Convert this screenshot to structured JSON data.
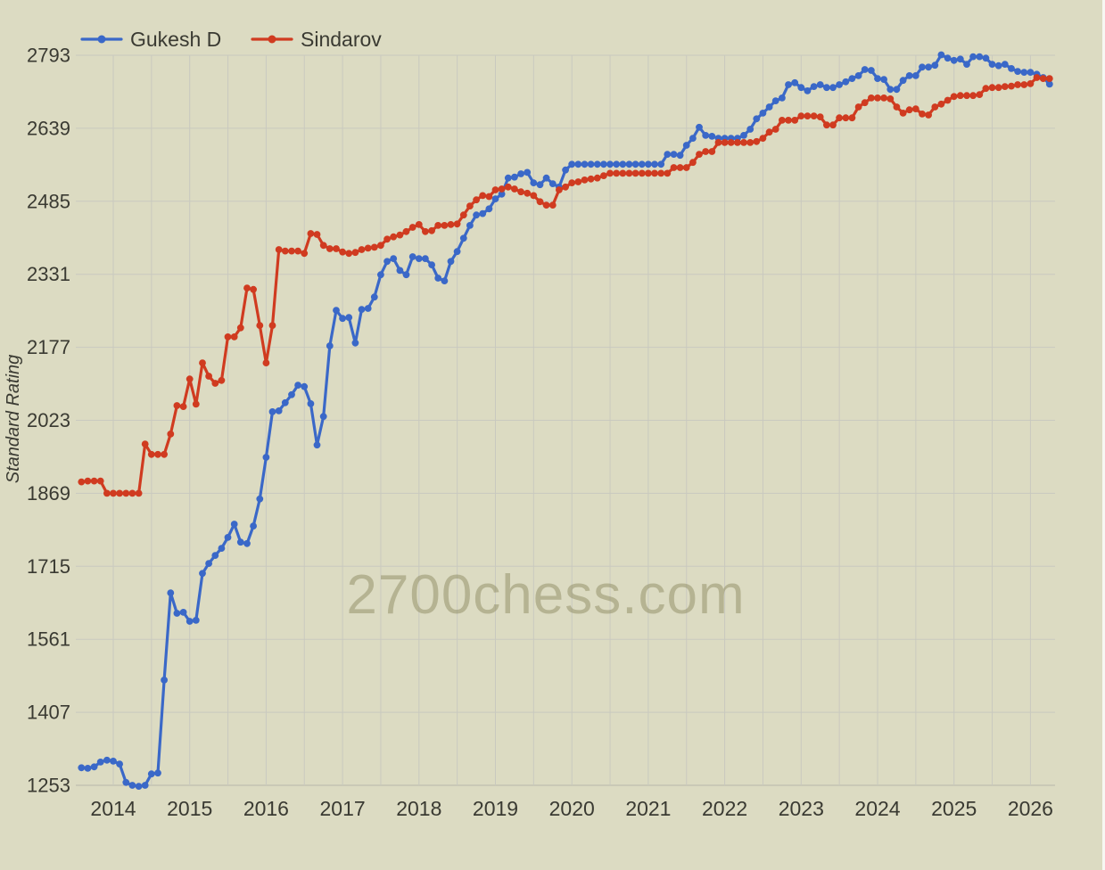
{
  "watermark": "2700chess.com",
  "colors": {
    "background": "#dcdbc2",
    "grid": "#c9c9bf",
    "axis_line": "#b7b7ab",
    "text": "#3a3a32",
    "watermark_color": "#8f8c63",
    "gukesh_blue": "#3a68c8",
    "sindarov_red": "#d03b20",
    "right_edge_strip": "#f7f7f2"
  },
  "legend": {
    "items": [
      {
        "label": "Gukesh D",
        "color": "#3a68c8"
      },
      {
        "label": "Sindarov",
        "color": "#d03b20"
      }
    ]
  },
  "y_axis": {
    "label": "Standard Rating",
    "ticks": [
      1253,
      1407,
      1561,
      1715,
      1869,
      2023,
      2177,
      2331,
      2485,
      2639,
      2793
    ]
  },
  "x_axis": {
    "tick_years": [
      2014,
      2015,
      2016,
      2017,
      2018,
      2019,
      2020,
      2021,
      2022,
      2023,
      2024,
      2025,
      2026
    ],
    "minor_grid_step_years": 0.5
  },
  "chart_data": {
    "type": "line",
    "title": "",
    "xlabel": "",
    "ylabel": "Standard Rating",
    "ylim": [
      1253,
      2793
    ],
    "xlim": [
      2013.54,
      2026.33
    ],
    "grid": true,
    "legend_position": "top-left",
    "x_start_year": 2013.5833,
    "x_step_years": 0.0833333,
    "marker": "circle",
    "series": [
      {
        "name": "Gukesh D",
        "color": "#3a68c8",
        "values": [
          1290,
          1289,
          1292,
          1302,
          1306,
          1304,
          1298,
          1259,
          1253,
          1251,
          1253,
          1277,
          1279,
          1475,
          1659,
          1616,
          1618,
          1599,
          1601,
          1700,
          1721,
          1738,
          1753,
          1776,
          1804,
          1766,
          1763,
          1800,
          1857,
          1945,
          2041,
          2043,
          2060,
          2077,
          2097,
          2094,
          2058,
          1971,
          2031,
          2180,
          2255,
          2238,
          2240,
          2186,
          2257,
          2259,
          2283,
          2330,
          2358,
          2364,
          2339,
          2330,
          2368,
          2364,
          2364,
          2351,
          2323,
          2317,
          2358,
          2379,
          2407,
          2434,
          2456,
          2459,
          2469,
          2490,
          2500,
          2534,
          2536,
          2543,
          2546,
          2524,
          2520,
          2534,
          2522,
          2515,
          2551,
          2563,
          2563,
          2563,
          2563,
          2563,
          2563,
          2563,
          2563,
          2563,
          2563,
          2563,
          2563,
          2563,
          2563,
          2563,
          2584,
          2584,
          2582,
          2603,
          2618,
          2641,
          2624,
          2622,
          2618,
          2618,
          2618,
          2618,
          2624,
          2637,
          2659,
          2671,
          2684,
          2697,
          2703,
          2731,
          2735,
          2725,
          2718,
          2727,
          2731,
          2725,
          2725,
          2731,
          2737,
          2744,
          2750,
          2763,
          2761,
          2744,
          2742,
          2721,
          2721,
          2740,
          2750,
          2750,
          2768,
          2768,
          2772,
          2794,
          2787,
          2782,
          2785,
          2774,
          2790,
          2790,
          2787,
          2774,
          2771,
          2774,
          2765,
          2759,
          2757,
          2757,
          2753,
          2746,
          2732
        ]
      },
      {
        "name": "Sindarov",
        "color": "#d03b20",
        "values": [
          1893,
          1895,
          1895,
          1895,
          1869,
          1869,
          1869,
          1869,
          1869,
          1869,
          1973,
          1951,
          1951,
          1951,
          1994,
          2054,
          2052,
          2110,
          2057,
          2144,
          2116,
          2101,
          2107,
          2199,
          2199,
          2218,
          2302,
          2299,
          2223,
          2144,
          2223,
          2383,
          2380,
          2380,
          2380,
          2375,
          2417,
          2415,
          2392,
          2385,
          2385,
          2378,
          2375,
          2377,
          2383,
          2386,
          2388,
          2392,
          2405,
          2410,
          2414,
          2421,
          2430,
          2436,
          2421,
          2423,
          2434,
          2434,
          2436,
          2437,
          2456,
          2475,
          2488,
          2497,
          2495,
          2509,
          2511,
          2515,
          2511,
          2505,
          2502,
          2497,
          2484,
          2477,
          2477,
          2509,
          2515,
          2524,
          2526,
          2530,
          2532,
          2534,
          2539,
          2544,
          2544,
          2544,
          2544,
          2544,
          2544,
          2544,
          2544,
          2544,
          2544,
          2556,
          2556,
          2556,
          2567,
          2584,
          2590,
          2590,
          2609,
          2609,
          2609,
          2609,
          2609,
          2609,
          2611,
          2618,
          2631,
          2637,
          2656,
          2656,
          2656,
          2665,
          2665,
          2665,
          2663,
          2646,
          2646,
          2661,
          2661,
          2661,
          2684,
          2693,
          2703,
          2703,
          2703,
          2701,
          2684,
          2671,
          2678,
          2680,
          2669,
          2667,
          2684,
          2690,
          2698,
          2706,
          2708,
          2708,
          2708,
          2710,
          2723,
          2725,
          2725,
          2727,
          2728,
          2731,
          2731,
          2733,
          2746,
          2744,
          2744
        ]
      }
    ]
  }
}
